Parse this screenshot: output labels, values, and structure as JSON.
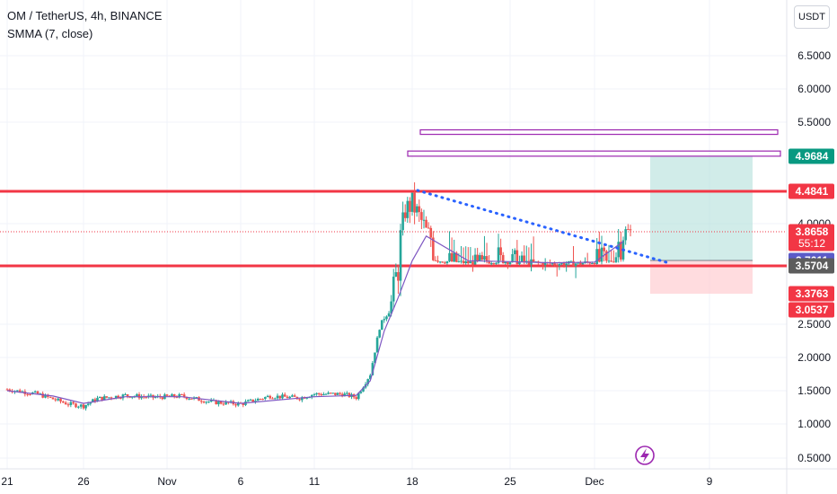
{
  "header": {
    "title": "OM / TetherUS, 4h, BINANCE",
    "indicator": "SMMA (7, close)",
    "currency_button": "USDT"
  },
  "colors": {
    "up": "#26a69a",
    "down": "#ef5350",
    "smma": "#7e57c2",
    "level_line": "#f23645",
    "trendline": "#2962ff",
    "zone_box": "#9c27b0",
    "target_zone": "#b2dfdb",
    "stop_zone": "#ffcdd2"
  },
  "icons": [
    "lightning-icon"
  ],
  "chart_data": {
    "type": "candlestick",
    "title": "OM / TetherUS, 4h, BINANCE",
    "ylim": [
      0.3,
      6.8
    ],
    "y_ticks": [
      "6.5000",
      "6.0000",
      "5.5000",
      "4.5000",
      "4.0000",
      "2.5000",
      "2.0000",
      "1.5000",
      "1.0000",
      "0.5000"
    ],
    "x_ticks": [
      "21",
      "26",
      "Nov",
      "6",
      "11",
      "18",
      "25",
      "Dec",
      "9"
    ],
    "grid": true,
    "series": [
      {
        "name": "OM / TetherUS",
        "ohlc_path_points": [
          [
            "Oct 21",
            1.52
          ],
          [
            "Oct 23",
            1.45
          ],
          [
            "Oct 25",
            1.3
          ],
          [
            "Oct 26",
            1.27
          ],
          [
            "Oct 27",
            1.38
          ],
          [
            "Oct 29",
            1.43
          ],
          [
            "Oct 31",
            1.4
          ],
          [
            "Nov 2",
            1.42
          ],
          [
            "Nov 4",
            1.33
          ],
          [
            "Nov 6",
            1.3
          ],
          [
            "Nov 8",
            1.42
          ],
          [
            "Nov 10",
            1.39
          ],
          [
            "Nov 11",
            1.45
          ],
          [
            "Nov 13",
            1.45
          ],
          [
            "Nov 14",
            1.4
          ],
          [
            "Nov 15",
            1.75
          ],
          [
            "Nov 16",
            2.8
          ],
          [
            "Nov 17",
            3.6
          ],
          [
            "Nov 17 12h",
            4.2
          ],
          [
            "Nov 18",
            4.3
          ],
          [
            "Nov 19",
            3.9
          ],
          [
            "Nov 20",
            3.75
          ],
          [
            "Nov 22",
            3.68
          ],
          [
            "Nov 24",
            3.74
          ],
          [
            "Nov 26",
            3.7
          ],
          [
            "Nov 28",
            3.65
          ],
          [
            "Nov 30",
            3.66
          ],
          [
            "Dec 1",
            3.72
          ],
          [
            "Dec 2",
            3.72
          ],
          [
            "Dec 3",
            3.88
          ]
        ]
      },
      {
        "name": "SMMA (7, close)",
        "points": [
          [
            "Oct 21",
            1.5
          ],
          [
            "Oct 24",
            1.42
          ],
          [
            "Oct 26",
            1.31
          ],
          [
            "Oct 29",
            1.41
          ],
          [
            "Nov 2",
            1.41
          ],
          [
            "Nov 6",
            1.31
          ],
          [
            "Nov 11",
            1.41
          ],
          [
            "Nov 14",
            1.43
          ],
          [
            "Nov 15",
            1.65
          ],
          [
            "Nov 16",
            2.4
          ],
          [
            "Nov 17",
            3.3
          ],
          [
            "Nov 18",
            3.75
          ],
          [
            "Nov 19",
            3.85
          ],
          [
            "Nov 22",
            3.75
          ],
          [
            "Nov 25",
            3.72
          ],
          [
            "Nov 28",
            3.68
          ],
          [
            "Dec 1",
            3.7
          ],
          [
            "Dec 3",
            3.83
          ]
        ]
      }
    ],
    "horizontal_levels": [
      {
        "price": 4.4841,
        "label": "4.4841",
        "color": "#f23645"
      },
      {
        "price": 3.5704,
        "label": "3.5704",
        "color": "#f23645"
      }
    ],
    "price_labels": [
      {
        "price": 4.9684,
        "label": "4.9684",
        "bg": "#089981"
      },
      {
        "price": 4.4841,
        "label": "4.4841",
        "bg": "#f23645"
      },
      {
        "price": 3.8658,
        "label": "3.8658",
        "bg": "#f23645",
        "timer": "55:12"
      },
      {
        "price": 3.7611,
        "label": "3.7611",
        "bg": "#5b5bc8"
      },
      {
        "price": 3.5704,
        "label": "3.5704",
        "bg": "#5d5d5d"
      },
      {
        "price": 3.3763,
        "label": "3.3763",
        "bg": "#f23645"
      },
      {
        "price": 3.0537,
        "label": "3.0537",
        "bg": "#f23645"
      }
    ],
    "zones": [
      {
        "top": 5.38,
        "bottom": 5.32,
        "from": "Nov 18",
        "to": "Dec 14"
      },
      {
        "top": 5.05,
        "bottom": 4.97,
        "from": "Nov 18",
        "to": "Dec 14"
      }
    ],
    "trendline": [
      [
        "Nov 18",
        4.5
      ],
      [
        "Dec 6",
        3.66
      ]
    ],
    "position": {
      "entry": 3.7611,
      "target": 4.9684,
      "stop": 3.3763,
      "from": "Dec 5",
      "to": "Dec 12"
    }
  }
}
